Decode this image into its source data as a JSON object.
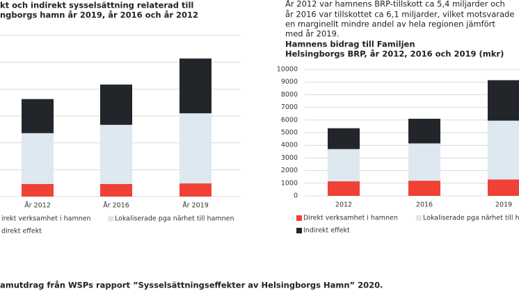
{
  "chart_data": [
    {
      "type": "bar",
      "stacked": true,
      "title": [
        "kt och indirekt sysselsättning relaterad till",
        "ngborgs hamn år 2019, år 2016 och år 2012"
      ],
      "categories": [
        "År 2012",
        "År 2016",
        "År 2019"
      ],
      "series": [
        {
          "name": "irekt verksamhet i hamnen",
          "color": "#ef4136",
          "values": [
            0.47,
            0.47,
            0.49
          ]
        },
        {
          "name": "Lokaliserade pga närhet till hamnen",
          "color": "#dde8f1",
          "values": [
            1.89,
            2.2,
            2.61
          ]
        },
        {
          "name": "direkt effekt",
          "color": "#222529",
          "values": [
            1.27,
            1.5,
            2.04
          ]
        }
      ],
      "ylim": [
        0,
        6
      ],
      "gridlines": [
        0,
        1,
        2,
        3,
        4,
        5,
        6
      ],
      "grid": true
    },
    {
      "type": "bar",
      "stacked": true,
      "title": [
        "Hamnens bidrag till Familjen",
        "Helsingborgs BRP, år 2012, 2016 och 2019 (mkr)"
      ],
      "categories": [
        "2012",
        "2016",
        "2019"
      ],
      "series": [
        {
          "name": "Direkt verksamhet i hamnen",
          "color": "#ef4136",
          "values": [
            1150,
            1200,
            1300
          ]
        },
        {
          "name": "Lokaliserade pga närhet till hamnen",
          "color": "#dde8f1",
          "values": [
            2550,
            2950,
            4650
          ]
        },
        {
          "name": "Indirekt effekt",
          "color": "#222529",
          "values": [
            1650,
            1950,
            3200
          ]
        }
      ],
      "ylim": [
        0,
        10000
      ],
      "yticks": [
        0,
        1000,
        2000,
        3000,
        4000,
        5000,
        6000,
        7000,
        8000,
        9000,
        10000
      ],
      "grid": true
    }
  ],
  "paragraph": [
    "År 2012 var hamnens BRP-tillskott ca 5,4 miljarder och",
    "år 2016 var tillskottet ca 6,1 miljarder,  vilket motsvarade",
    "en marginellt mindre andel av hela regionen jämfört",
    "med år 2019."
  ],
  "caption": "amutdrag från WSPs rapport ”Sysselsättningseffekter av Helsingborgs Hamn” 2020."
}
